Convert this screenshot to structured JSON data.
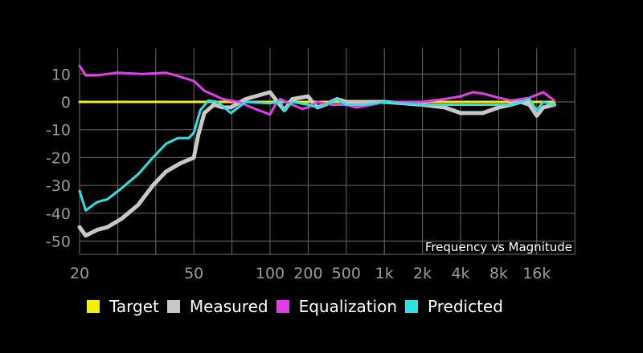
{
  "chart_data": {
    "type": "line",
    "title": "Frequency vs Magnitude",
    "xlabel": "",
    "ylabel": "",
    "x_scale": "log (tick-equalized)",
    "x_ticks": [
      {
        "value": 20,
        "label": "20",
        "grid_index": 0
      },
      {
        "value": 50,
        "label": "50",
        "grid_index": 3
      },
      {
        "value": 100,
        "label": "100",
        "grid_index": 5
      },
      {
        "value": 200,
        "label": "200",
        "grid_index": 6
      },
      {
        "value": 500,
        "label": "500",
        "grid_index": 7
      },
      {
        "value": 1000,
        "label": "1k",
        "grid_index": 8
      },
      {
        "value": 2000,
        "label": "2k",
        "grid_index": 9
      },
      {
        "value": 4000,
        "label": "4k",
        "grid_index": 10
      },
      {
        "value": 8000,
        "label": "8k",
        "grid_index": 11
      },
      {
        "value": 16000,
        "label": "16k",
        "grid_index": 12
      }
    ],
    "y_ticks": [
      10,
      0,
      -10,
      -20,
      -30,
      -40,
      -50
    ],
    "ylim": [
      -55,
      20
    ],
    "grid": true,
    "legend_position": "bottom",
    "series": [
      {
        "name": "Target",
        "color": "#f2f200",
        "points": [
          [
            20,
            0
          ],
          [
            22000,
            0
          ]
        ]
      },
      {
        "name": "Measured",
        "color": "#c8c8c8",
        "points": [
          [
            20,
            -45
          ],
          [
            21,
            -48
          ],
          [
            23,
            -46
          ],
          [
            25,
            -45
          ],
          [
            28,
            -42
          ],
          [
            32,
            -37
          ],
          [
            36,
            -30
          ],
          [
            40,
            -25
          ],
          [
            45,
            -22
          ],
          [
            50,
            -20
          ],
          [
            52,
            -12
          ],
          [
            55,
            -4
          ],
          [
            60,
            -1
          ],
          [
            65,
            -2
          ],
          [
            70,
            -2
          ],
          [
            80,
            1
          ],
          [
            100,
            3.5
          ],
          [
            110,
            1
          ],
          [
            130,
            -3
          ],
          [
            150,
            1
          ],
          [
            200,
            2
          ],
          [
            220,
            0
          ],
          [
            250,
            -2
          ],
          [
            300,
            -1
          ],
          [
            400,
            1
          ],
          [
            500,
            0
          ],
          [
            700,
            0
          ],
          [
            1000,
            0
          ],
          [
            2000,
            -1
          ],
          [
            3000,
            -2
          ],
          [
            4000,
            -4
          ],
          [
            6000,
            -4
          ],
          [
            8000,
            -2
          ],
          [
            10000,
            -1
          ],
          [
            12000,
            0
          ],
          [
            14000,
            -1
          ],
          [
            16000,
            -5
          ],
          [
            18000,
            -2
          ],
          [
            22000,
            -1
          ]
        ]
      },
      {
        "name": "Equalization",
        "color": "#e040e8",
        "points": [
          [
            20,
            13
          ],
          [
            21,
            9.5
          ],
          [
            23,
            9.5
          ],
          [
            27,
            10.5
          ],
          [
            33,
            10
          ],
          [
            40,
            10.5
          ],
          [
            45,
            9
          ],
          [
            50,
            7.5
          ],
          [
            55,
            4
          ],
          [
            65,
            1
          ],
          [
            75,
            0
          ],
          [
            90,
            -3
          ],
          [
            100,
            -4.5
          ],
          [
            110,
            -1
          ],
          [
            120,
            1
          ],
          [
            150,
            -1
          ],
          [
            180,
            -2.5
          ],
          [
            200,
            -2
          ],
          [
            250,
            0
          ],
          [
            350,
            -1
          ],
          [
            500,
            -1
          ],
          [
            600,
            -2
          ],
          [
            800,
            -1
          ],
          [
            1000,
            0
          ],
          [
            2000,
            0
          ],
          [
            3000,
            1
          ],
          [
            4000,
            2
          ],
          [
            5000,
            3.5
          ],
          [
            6000,
            3
          ],
          [
            8000,
            1.5
          ],
          [
            10000,
            0.5
          ],
          [
            14000,
            1.5
          ],
          [
            18000,
            3.5
          ],
          [
            22000,
            0.5
          ]
        ]
      },
      {
        "name": "Predicted",
        "color": "#30e0e0",
        "points": [
          [
            20,
            -32
          ],
          [
            21,
            -39
          ],
          [
            23,
            -36
          ],
          [
            25,
            -35
          ],
          [
            28,
            -31
          ],
          [
            32,
            -26
          ],
          [
            36,
            -20
          ],
          [
            40,
            -15
          ],
          [
            44,
            -13
          ],
          [
            48,
            -13
          ],
          [
            50,
            -11
          ],
          [
            53,
            -3
          ],
          [
            57,
            0.5
          ],
          [
            62,
            0
          ],
          [
            70,
            -4
          ],
          [
            80,
            0
          ],
          [
            100,
            -0.5
          ],
          [
            120,
            0
          ],
          [
            130,
            -3
          ],
          [
            150,
            0
          ],
          [
            200,
            -1
          ],
          [
            250,
            -2
          ],
          [
            300,
            -1
          ],
          [
            400,
            1
          ],
          [
            500,
            -1
          ],
          [
            700,
            -1
          ],
          [
            1000,
            0
          ],
          [
            2000,
            -1
          ],
          [
            4000,
            -1
          ],
          [
            8000,
            -1
          ],
          [
            10000,
            -1
          ],
          [
            12000,
            0
          ],
          [
            14000,
            1
          ],
          [
            16000,
            -3
          ],
          [
            18000,
            0
          ],
          [
            22000,
            -1
          ]
        ]
      }
    ]
  }
}
